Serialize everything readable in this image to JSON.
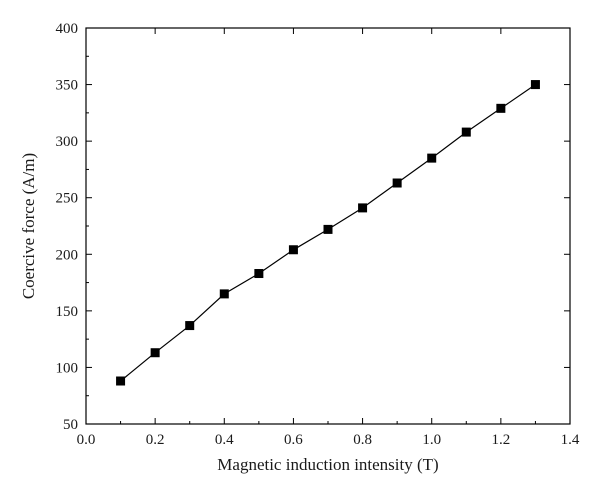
{
  "chart_data": {
    "type": "line",
    "markers": "square",
    "title": "",
    "xlabel": "Magnetic induction intensity (T)",
    "ylabel": "Coercive force (A/m)",
    "xlim": [
      0.0,
      1.4
    ],
    "ylim": [
      50,
      400
    ],
    "x_ticks": [
      "0.0",
      "0.2",
      "0.4",
      "0.6",
      "0.8",
      "1.0",
      "1.2",
      "1.4"
    ],
    "y_ticks": [
      "50",
      "100",
      "150",
      "200",
      "250",
      "300",
      "350",
      "400"
    ],
    "grid": false,
    "legend": "none",
    "series": [
      {
        "x": [
          0.1,
          0.2,
          0.3,
          0.4,
          0.5,
          0.6,
          0.7,
          0.8,
          0.9,
          1.0,
          1.1,
          1.2,
          1.3
        ],
        "y": [
          88,
          113,
          137,
          165,
          183,
          204,
          222,
          241,
          263,
          285,
          308,
          329,
          350
        ],
        "color": "#000000"
      }
    ]
  }
}
